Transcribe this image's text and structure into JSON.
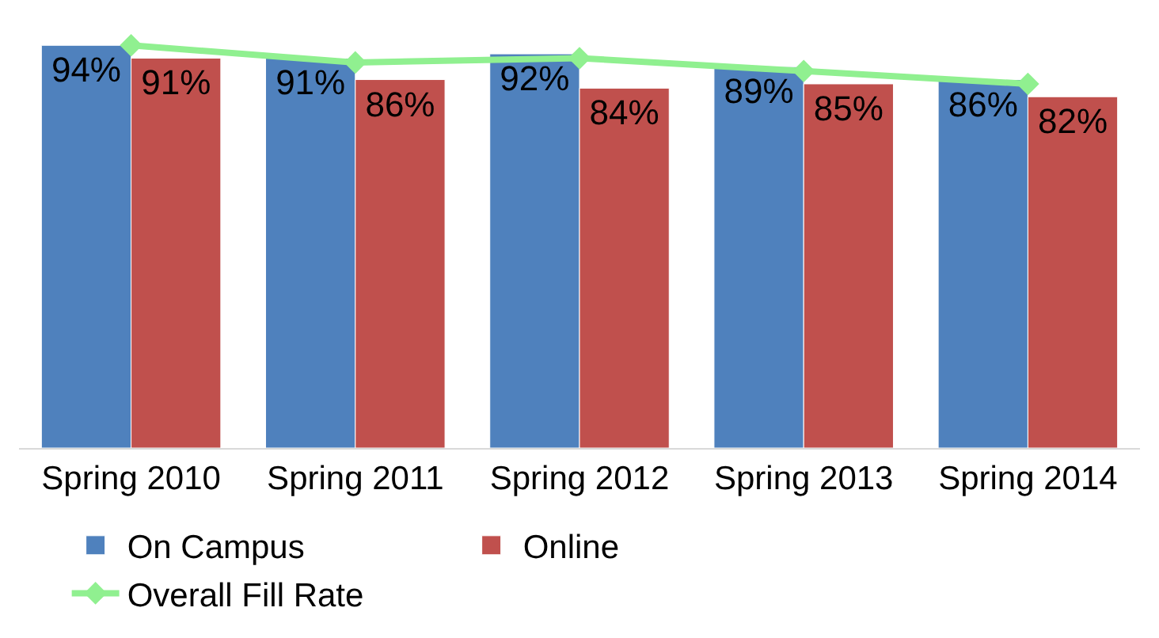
{
  "chart_data": {
    "type": "bar",
    "categories": [
      "Spring 2010",
      "Spring 2011",
      "Spring 2012",
      "Spring 2013",
      "Spring 2014"
    ],
    "series": [
      {
        "name": "On Campus",
        "color": "#4f81bd",
        "values": [
          94,
          91,
          92,
          89,
          86
        ],
        "value_labels": [
          "94%",
          "91%",
          "92%",
          "89%",
          "86%"
        ]
      },
      {
        "name": "Online",
        "color": "#c0504d",
        "values": [
          91,
          86,
          84,
          85,
          82
        ],
        "value_labels": [
          "91%",
          "86%",
          "84%",
          "85%",
          "82%"
        ]
      },
      {
        "name": "Overall Fill Rate",
        "type": "line",
        "color": "#90f090",
        "marker": "diamond",
        "values": [
          94,
          90,
          91,
          88,
          85
        ]
      }
    ],
    "tick_labels": "x",
    "grid": false,
    "legend": "bottom"
  }
}
